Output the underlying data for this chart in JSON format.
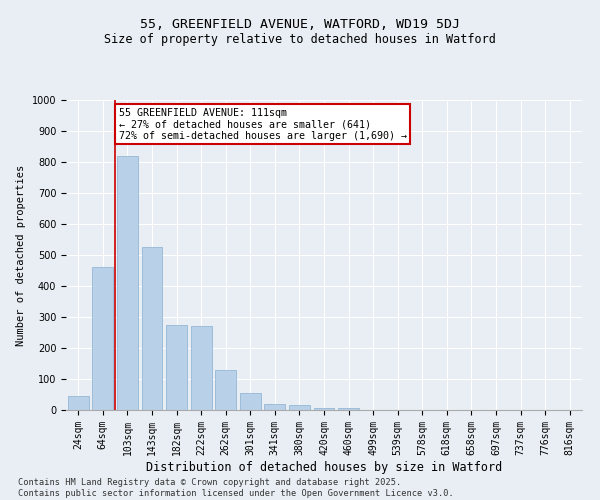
{
  "title": "55, GREENFIELD AVENUE, WATFORD, WD19 5DJ",
  "subtitle": "Size of property relative to detached houses in Watford",
  "xlabel": "Distribution of detached houses by size in Watford",
  "ylabel": "Number of detached properties",
  "categories": [
    "24sqm",
    "64sqm",
    "103sqm",
    "143sqm",
    "182sqm",
    "222sqm",
    "262sqm",
    "301sqm",
    "341sqm",
    "380sqm",
    "420sqm",
    "460sqm",
    "499sqm",
    "539sqm",
    "578sqm",
    "618sqm",
    "658sqm",
    "697sqm",
    "737sqm",
    "776sqm",
    "816sqm"
  ],
  "values": [
    45,
    460,
    820,
    525,
    275,
    270,
    130,
    55,
    20,
    15,
    8,
    8,
    0,
    0,
    0,
    0,
    0,
    0,
    0,
    0,
    0
  ],
  "bar_color": "#b8d0e8",
  "bar_edge_color": "#8ab0d0",
  "vline_color": "#cc0000",
  "vline_pos": 1.5,
  "annotation_text": "55 GREENFIELD AVENUE: 111sqm\n← 27% of detached houses are smaller (641)\n72% of semi-detached houses are larger (1,690) →",
  "annotation_box_color": "#ffffff",
  "annotation_box_edge": "#cc0000",
  "ylim": [
    0,
    1000
  ],
  "yticks": [
    0,
    100,
    200,
    300,
    400,
    500,
    600,
    700,
    800,
    900,
    1000
  ],
  "background_color": "#e8eef4",
  "grid_color": "#ffffff",
  "title_fontsize": 9.5,
  "subtitle_fontsize": 8.5,
  "xlabel_fontsize": 8.5,
  "ylabel_fontsize": 7.5,
  "tick_fontsize": 7,
  "footer": "Contains HM Land Registry data © Crown copyright and database right 2025.\nContains public sector information licensed under the Open Government Licence v3.0."
}
